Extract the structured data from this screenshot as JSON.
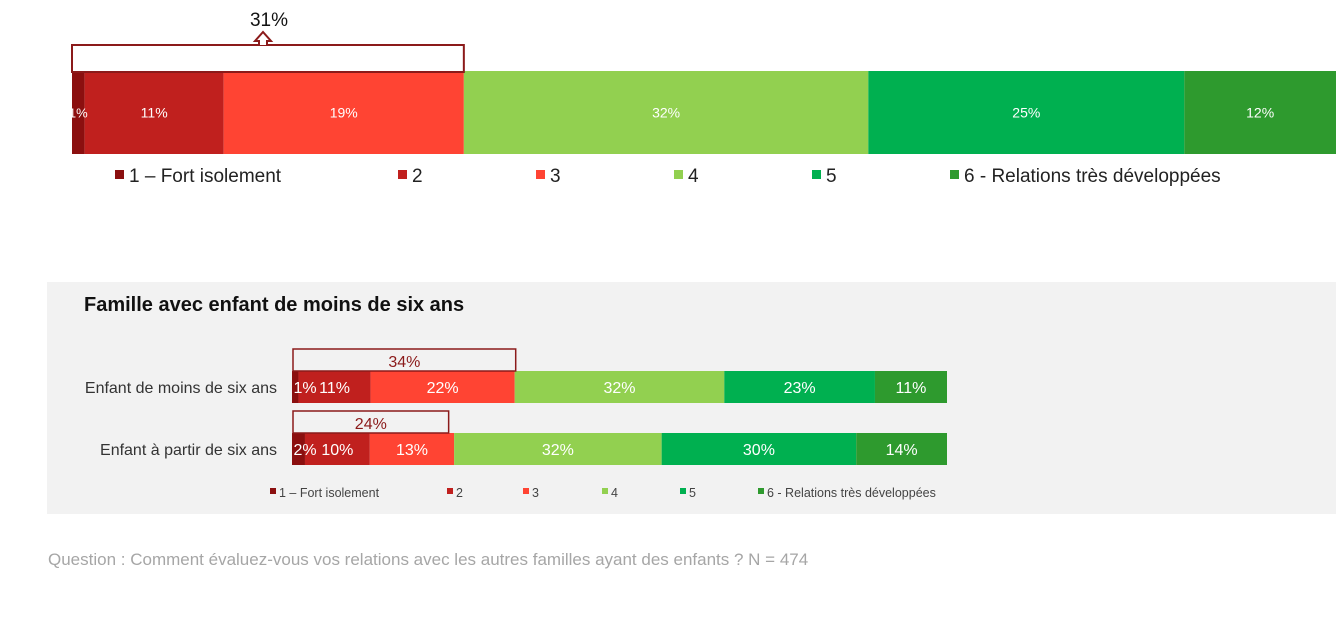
{
  "chart_data": [
    {
      "type": "bar",
      "orientation": "horizontal-stacked-100",
      "title": "",
      "categories": [
        ""
      ],
      "series": [
        {
          "name": "1 – Fort isolement",
          "values": [
            1
          ],
          "labels": [
            "1%"
          ]
        },
        {
          "name": "2",
          "values": [
            11
          ],
          "labels": [
            "11%"
          ]
        },
        {
          "name": "3",
          "values": [
            19
          ],
          "labels": [
            "19%"
          ]
        },
        {
          "name": "4",
          "values": [
            32
          ],
          "labels": [
            "32%"
          ]
        },
        {
          "name": "5",
          "values": [
            25
          ],
          "labels": [
            "25%"
          ]
        },
        {
          "name": "6 - Relations très développées",
          "values": [
            12
          ],
          "labels": [
            "12%"
          ]
        }
      ],
      "bracket": {
        "label": "31%",
        "value": 31
      },
      "legend": "bottom"
    },
    {
      "type": "bar",
      "orientation": "horizontal-stacked-100",
      "title": "Famille avec enfant de moins de six ans",
      "categories": [
        "Enfant de moins de six ans",
        "Enfant à partir de six ans"
      ],
      "series": [
        {
          "name": "1 – Fort isolement",
          "values": [
            1,
            2
          ],
          "labels": [
            "1%",
            "2%"
          ]
        },
        {
          "name": "2",
          "values": [
            11,
            10
          ],
          "labels": [
            "11%",
            "10%"
          ]
        },
        {
          "name": "3",
          "values": [
            22,
            13
          ],
          "labels": [
            "22%",
            "13%"
          ]
        },
        {
          "name": "4",
          "values": [
            32,
            32
          ],
          "labels": [
            "32%",
            "32%"
          ]
        },
        {
          "name": "5",
          "values": [
            23,
            30
          ],
          "labels": [
            "23%",
            "30%"
          ]
        },
        {
          "name": "6 - Relations très développées",
          "values": [
            11,
            14
          ],
          "labels": [
            "11%",
            "14%"
          ]
        }
      ],
      "brackets": [
        {
          "label": "34%",
          "value": 34
        },
        {
          "label": "24%",
          "value": 24
        }
      ],
      "legend": "bottom"
    }
  ],
  "colors": [
    "#8b0f0f",
    "#c0201e",
    "#ff4433",
    "#92d050",
    "#00b050",
    "#2e9a2e"
  ],
  "bracket_color": "#8b1a1a",
  "footer": {
    "question": "Question : Comment évaluez-vous vos relations avec les autres familles ayant des enfants ?  N = 474"
  }
}
